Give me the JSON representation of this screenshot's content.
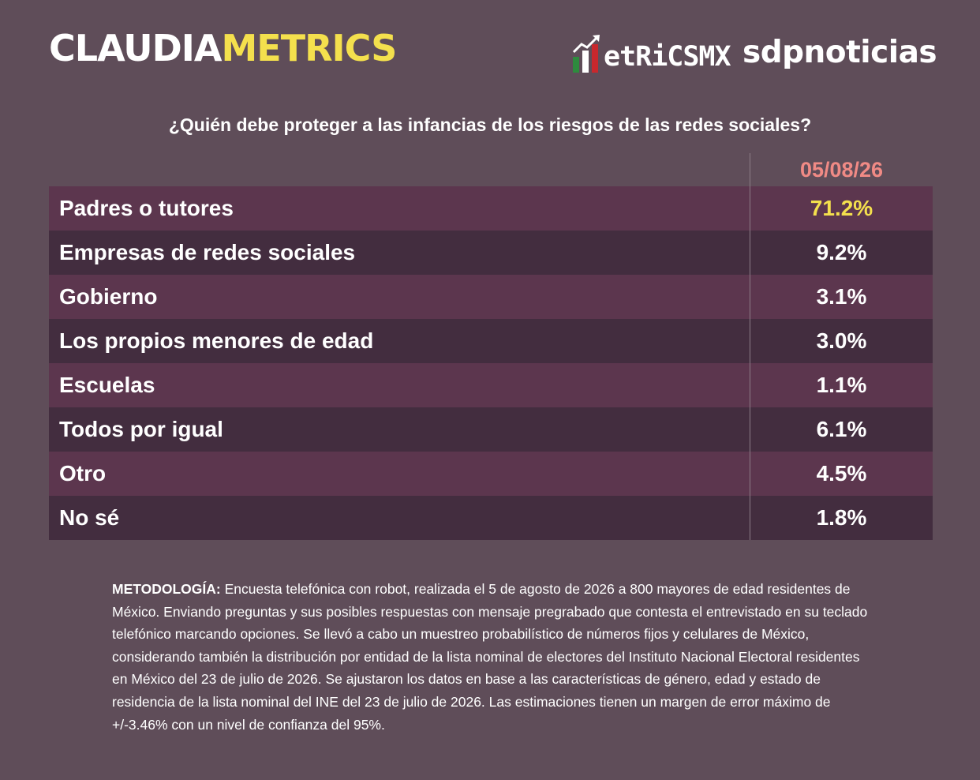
{
  "brand": {
    "claudia": "CLAUDIA",
    "metrics": "METRICS",
    "accent_color": "#f4e04d"
  },
  "logos": {
    "metrics_mx": "etRiCSMX",
    "metrics_mx_icon": "bar-chart-arrow-icon",
    "sdp": "sdpnoticias"
  },
  "chart_data": {
    "type": "table",
    "title": "¿Quién debe proteger a las infancias de los riesgos de las redes sociales?",
    "column": "05/08/26",
    "rows": [
      {
        "label": "Padres o tutores",
        "value": "71.2%",
        "highlight": true
      },
      {
        "label": "Empresas de redes sociales",
        "value": "9.2%"
      },
      {
        "label": "Gobierno",
        "value": "3.1%"
      },
      {
        "label": "Los propios menores de edad",
        "value": "3.0%"
      },
      {
        "label": "Escuelas",
        "value": "1.1%"
      },
      {
        "label": "Todos por igual",
        "value": "6.1%"
      },
      {
        "label": "Otro",
        "value": "4.5%"
      },
      {
        "label": "No sé",
        "value": "1.8%"
      }
    ],
    "colors": {
      "background": "#5f4d59",
      "row_light": "#5c364e",
      "row_dark": "#432d3f",
      "date": "#f08a85",
      "highlight": "#f4e04d"
    }
  },
  "methodology": {
    "label": "METODOLOGÍA:",
    "text": " Encuesta telefónica con robot, realizada el 5 de agosto de 2026 a 800 mayores de edad residentes de México. Enviando preguntas y sus posibles respuestas con mensaje pregrabado que contesta el entrevistado en su teclado telefónico marcando opciones. Se llevó a cabo un muestreo probabilístico de números fijos y celulares de México, considerando también la distribución por entidad de la lista nominal de electores del Instituto Nacional Electoral residentes en México del 23 de julio de 2026. Se ajustaron los datos en base a las características de género, edad y estado de residencia de la lista nominal del INE del 23 de julio de 2026. Las estimaciones tienen un margen de error máximo de +/-3.46% con un nivel de confianza del 95%."
  }
}
